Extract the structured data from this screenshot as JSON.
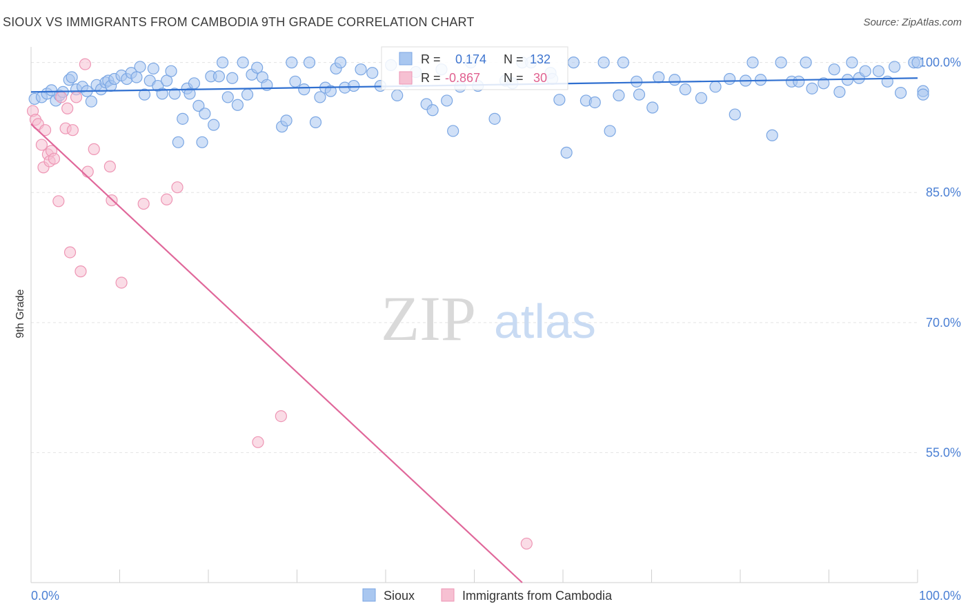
{
  "header": {
    "title": "SIOUX VS IMMIGRANTS FROM CAMBODIA 9TH GRADE CORRELATION CHART",
    "source": "Source: ZipAtlas.com"
  },
  "watermark": {
    "zip": "ZIP",
    "atlas": "atlas"
  },
  "stats": {
    "r_label": "R =",
    "n_label": "N =",
    "sioux": {
      "r": "0.174",
      "n": "132"
    },
    "cambodia": {
      "r": "-0.867",
      "n": "30"
    }
  },
  "colors": {
    "sioux_fill": "#a9c7f0",
    "sioux_stroke": "#7aa6e3",
    "sioux_line": "#2f6fd0",
    "cambodia_fill": "#f6c0d2",
    "cambodia_stroke": "#ee95b4",
    "cambodia_line": "#e0679a",
    "tick_text": "#4a7fd4",
    "grid": "#e3e3e3"
  },
  "chart_data": {
    "type": "scatter",
    "title": "SIOUX VS IMMIGRANTS FROM CAMBODIA 9TH GRADE CORRELATION CHART",
    "xlabel": "",
    "ylabel": "9th Grade",
    "xlim": [
      0,
      100
    ],
    "ylim": [
      40,
      101.8
    ],
    "x_tick_labels": [
      "0.0%",
      "100.0%"
    ],
    "y_ticks": [
      {
        "value": 55,
        "label": "55.0%"
      },
      {
        "value": 70,
        "label": "70.0%"
      },
      {
        "value": 85,
        "label": "85.0%"
      },
      {
        "value": 100,
        "label": "100.0%"
      }
    ],
    "grid": true,
    "legend_position": "bottom-center",
    "series": [
      {
        "name": "Sioux",
        "color": "#a9c7f0",
        "trend": {
          "x": [
            0,
            100
          ],
          "y": [
            96.6,
            98.2
          ]
        },
        "points": [
          [
            0.4,
            95.8
          ],
          [
            1.2,
            96.0
          ],
          [
            1.8,
            96.4
          ],
          [
            2.3,
            96.8
          ],
          [
            2.8,
            95.6
          ],
          [
            3.2,
            96.2
          ],
          [
            3.6,
            96.6
          ],
          [
            4.3,
            98.0
          ],
          [
            4.6,
            98.3
          ],
          [
            5.1,
            96.9
          ],
          [
            5.8,
            97.2
          ],
          [
            6.3,
            96.7
          ],
          [
            6.8,
            95.5
          ],
          [
            7.4,
            97.4
          ],
          [
            7.9,
            96.9
          ],
          [
            8.4,
            97.7
          ],
          [
            8.7,
            97.9
          ],
          [
            9.0,
            97.3
          ],
          [
            9.4,
            98.1
          ],
          [
            10.2,
            98.5
          ],
          [
            10.8,
            98.1
          ],
          [
            11.3,
            98.8
          ],
          [
            11.9,
            98.3
          ],
          [
            12.3,
            99.5
          ],
          [
            12.8,
            96.3
          ],
          [
            13.4,
            97.9
          ],
          [
            13.8,
            99.3
          ],
          [
            14.3,
            97.3
          ],
          [
            14.8,
            96.4
          ],
          [
            15.3,
            97.9
          ],
          [
            15.8,
            99.0
          ],
          [
            16.2,
            96.4
          ],
          [
            16.6,
            90.8
          ],
          [
            17.1,
            93.5
          ],
          [
            17.6,
            97.0
          ],
          [
            17.9,
            96.4
          ],
          [
            18.4,
            97.6
          ],
          [
            18.9,
            95.0
          ],
          [
            19.3,
            90.8
          ],
          [
            19.6,
            94.1
          ],
          [
            20.3,
            98.4
          ],
          [
            20.6,
            92.8
          ],
          [
            21.2,
            98.4
          ],
          [
            21.6,
            100.0
          ],
          [
            22.2,
            96.0
          ],
          [
            22.7,
            98.2
          ],
          [
            23.3,
            95.1
          ],
          [
            23.9,
            100.0
          ],
          [
            24.4,
            96.3
          ],
          [
            24.9,
            98.6
          ],
          [
            25.5,
            99.4
          ],
          [
            26.1,
            98.3
          ],
          [
            26.6,
            97.4
          ],
          [
            28.3,
            92.6
          ],
          [
            28.8,
            93.3
          ],
          [
            29.4,
            100.0
          ],
          [
            29.8,
            97.8
          ],
          [
            30.8,
            96.9
          ],
          [
            31.4,
            100.0
          ],
          [
            32.1,
            93.1
          ],
          [
            32.6,
            96.0
          ],
          [
            33.2,
            97.1
          ],
          [
            33.8,
            96.7
          ],
          [
            34.4,
            99.3
          ],
          [
            34.9,
            100.0
          ],
          [
            35.4,
            97.1
          ],
          [
            36.4,
            97.3
          ],
          [
            37.2,
            99.2
          ],
          [
            38.5,
            98.8
          ],
          [
            39.4,
            97.3
          ],
          [
            40.6,
            99.7
          ],
          [
            41.3,
            96.2
          ],
          [
            42.4,
            97.8
          ],
          [
            43.4,
            98.9
          ],
          [
            44.6,
            95.2
          ],
          [
            45.3,
            94.5
          ],
          [
            46.3,
            99.2
          ],
          [
            46.9,
            95.6
          ],
          [
            47.6,
            92.1
          ],
          [
            48.4,
            97.2
          ],
          [
            49.6,
            100.0
          ],
          [
            50.4,
            97.3
          ],
          [
            52.3,
            93.5
          ],
          [
            53.5,
            97.9
          ],
          [
            54.3,
            97.6
          ],
          [
            55.4,
            100.0
          ],
          [
            56.4,
            100.0
          ],
          [
            58.6,
            98.8
          ],
          [
            58.8,
            98.1
          ],
          [
            59.6,
            95.7
          ],
          [
            60.4,
            89.6
          ],
          [
            61.2,
            100.0
          ],
          [
            62.6,
            95.6
          ],
          [
            63.6,
            95.4
          ],
          [
            64.6,
            100.0
          ],
          [
            65.3,
            92.1
          ],
          [
            66.3,
            96.2
          ],
          [
            66.8,
            100.0
          ],
          [
            68.3,
            97.8
          ],
          [
            68.6,
            96.3
          ],
          [
            70.1,
            94.8
          ],
          [
            70.8,
            98.3
          ],
          [
            72.6,
            98.0
          ],
          [
            73.8,
            96.9
          ],
          [
            75.6,
            95.9
          ],
          [
            77.2,
            97.2
          ],
          [
            78.8,
            98.1
          ],
          [
            79.4,
            94.0
          ],
          [
            80.6,
            97.9
          ],
          [
            81.4,
            100.0
          ],
          [
            82.3,
            98.0
          ],
          [
            83.6,
            91.6
          ],
          [
            84.6,
            100.0
          ],
          [
            85.8,
            97.8
          ],
          [
            86.6,
            97.8
          ],
          [
            87.4,
            100.0
          ],
          [
            88.1,
            97.0
          ],
          [
            89.4,
            97.6
          ],
          [
            90.6,
            99.2
          ],
          [
            91.2,
            96.6
          ],
          [
            92.1,
            98.0
          ],
          [
            92.6,
            100.0
          ],
          [
            93.4,
            98.2
          ],
          [
            94.1,
            99.0
          ],
          [
            95.6,
            99.0
          ],
          [
            96.6,
            97.8
          ],
          [
            97.4,
            99.5
          ],
          [
            98.1,
            96.5
          ],
          [
            99.6,
            100.0
          ],
          [
            100.0,
            100.0
          ],
          [
            100.8,
            96.7
          ],
          [
            101.6,
            96.3
          ]
        ]
      },
      {
        "name": "Immigrants from Cambodia",
        "color": "#f6c0d2",
        "trend": {
          "x": [
            0,
            55.4
          ],
          "y": [
            92.9,
            40.0
          ]
        },
        "points": [
          [
            0.2,
            94.4
          ],
          [
            0.5,
            93.4
          ],
          [
            0.8,
            92.9
          ],
          [
            1.2,
            90.5
          ],
          [
            1.4,
            87.9
          ],
          [
            1.6,
            92.2
          ],
          [
            1.9,
            89.4
          ],
          [
            2.1,
            88.6
          ],
          [
            2.3,
            89.8
          ],
          [
            2.6,
            88.9
          ],
          [
            3.1,
            84.0
          ],
          [
            3.4,
            96.0
          ],
          [
            3.9,
            92.4
          ],
          [
            4.1,
            94.7
          ],
          [
            4.4,
            78.1
          ],
          [
            4.7,
            92.2
          ],
          [
            5.1,
            96.0
          ],
          [
            5.6,
            75.9
          ],
          [
            6.1,
            99.8
          ],
          [
            6.4,
            87.4
          ],
          [
            7.1,
            90.0
          ],
          [
            8.9,
            88.0
          ],
          [
            9.1,
            84.1
          ],
          [
            10.2,
            74.6
          ],
          [
            12.7,
            83.7
          ],
          [
            15.3,
            84.2
          ],
          [
            16.5,
            85.6
          ],
          [
            25.6,
            56.2
          ],
          [
            28.2,
            59.2
          ],
          [
            55.9,
            44.5
          ]
        ]
      }
    ]
  },
  "legend": {
    "sioux": "Sioux",
    "cambodia": "Immigrants from Cambodia"
  }
}
